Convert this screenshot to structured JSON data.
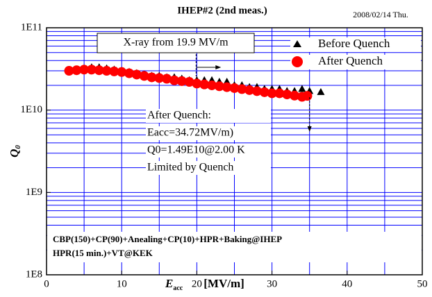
{
  "chart_data": {
    "type": "scatter",
    "title": "IHEP#2 (2nd meas.)",
    "date": "2008/02/14 Thu.",
    "xlabel": {
      "text": "E",
      "sub": "acc",
      "unit": "[MV/m]"
    },
    "ylabel": {
      "text": "Q",
      "sub": "0"
    },
    "xlim": [
      0,
      50
    ],
    "xticks": [
      0,
      10,
      20,
      30,
      40,
      50
    ],
    "xgrid": [
      0,
      5,
      10,
      15,
      20,
      25,
      30,
      35,
      40,
      45,
      50
    ],
    "ylim": [
      100000000,
      100000000000
    ],
    "log_y": true,
    "grid": true,
    "yticks": [
      {
        "value": 100000000,
        "label": "1E8"
      },
      {
        "value": 1000000000,
        "label": "1E9"
      },
      {
        "value": 10000000000,
        "label": "1E10"
      },
      {
        "value": 100000000000,
        "label": "1E11"
      }
    ],
    "yminorticks": [
      200000000,
      300000000,
      400000000,
      500000000,
      600000000,
      700000000,
      800000000,
      900000000,
      2000000000,
      3000000000,
      4000000000,
      5000000000,
      6000000000,
      7000000000,
      8000000000,
      9000000000,
      20000000000,
      30000000000,
      40000000000,
      50000000000,
      60000000000,
      70000000000,
      80000000000,
      90000000000
    ],
    "legend": "top-right",
    "series": [
      {
        "name": "Before Quench",
        "color": "#000000",
        "marker": "triangle",
        "x": [
          5,
          6,
          7,
          8,
          9,
          10,
          11,
          12,
          13,
          14,
          15,
          16,
          17,
          18,
          19,
          20,
          21,
          22,
          23,
          24,
          25,
          26,
          27,
          28,
          29,
          30,
          31,
          32,
          33,
          34,
          35,
          36.5
        ],
        "values": [
          32000000000,
          33000000000,
          33000000000,
          32000000000,
          31000000000,
          30000000000,
          29000000000,
          28000000000,
          27000000000,
          26000000000,
          26000000000,
          25000000000,
          25000000000,
          24000000000,
          23000000000,
          23000000000,
          23000000000,
          23000000000,
          22000000000,
          22000000000,
          20000000000,
          20000000000,
          19000000000,
          19000000000,
          18000000000,
          18000000000,
          18000000000,
          17000000000,
          17000000000,
          18000000000,
          17000000000,
          16500000000
        ]
      },
      {
        "name": "After Quench",
        "color": "#ff0000",
        "marker": "circle",
        "x": [
          3,
          4,
          5,
          6,
          7,
          8,
          9,
          10,
          11,
          12,
          13,
          14,
          15,
          16,
          17,
          18,
          19,
          20,
          21,
          22,
          23,
          24,
          25,
          26,
          27,
          28,
          29,
          30,
          31,
          32,
          33,
          34,
          34.7
        ],
        "values": [
          30000000000,
          30500000000,
          31000000000,
          31000000000,
          30500000000,
          30000000000,
          29500000000,
          29000000000,
          28000000000,
          27000000000,
          26000000000,
          25000000000,
          24500000000,
          24000000000,
          23000000000,
          22500000000,
          22000000000,
          21000000000,
          20500000000,
          20000000000,
          19500000000,
          19000000000,
          18500000000,
          18000000000,
          17500000000,
          17000000000,
          16500000000,
          16000000000,
          16000000000,
          15500000000,
          15000000000,
          14500000000,
          14900000000
        ]
      }
    ],
    "xray_note": {
      "text": "X-ray from 19.9 MV/m",
      "x": 19.9
    },
    "quench_note": {
      "x": 35,
      "lines": [
        "After Quench:",
        "Eacc=34.72MV/m)",
        "Q0=1.49E10@2.00 K",
        "Limited by Quench"
      ]
    },
    "process_note": [
      "CBP(150)+CP(90)+Anealing+CP(10)+HPR+Baking@IHEP",
      "HPR(15 min.)+VT@KEK"
    ]
  }
}
